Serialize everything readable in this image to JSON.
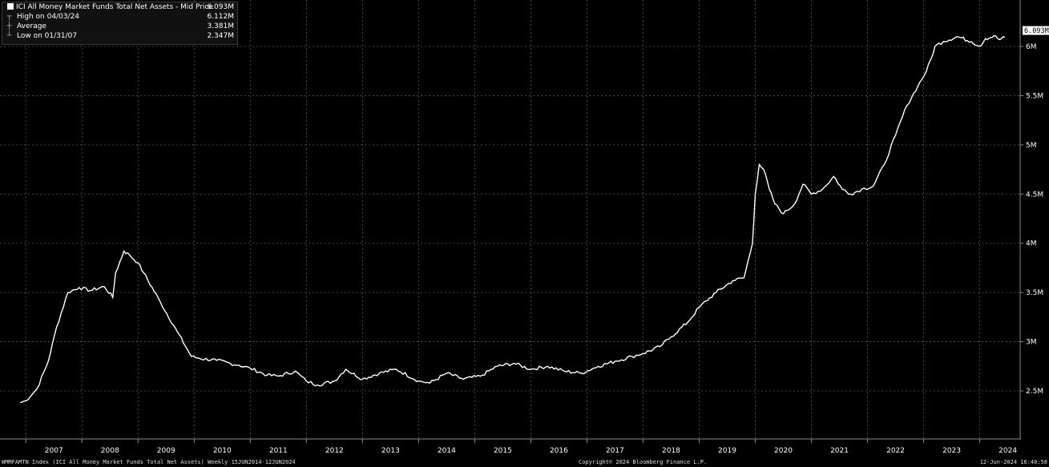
{
  "legend": {
    "title": "ICI All Money Market Funds Total Net Assets - Mid Price",
    "last_value": "6.093M",
    "high_label": "High on 04/03/24",
    "high_value": "6.112M",
    "average_label": "Average",
    "average_value": "3.381M",
    "low_label": "Low on 01/31/07",
    "low_value": "2.347M"
  },
  "footer": {
    "left": "WMMFAMTN Index (ICI All Money Market Funds Total Net Assets)  Weekly 15JUN2014-12JUN2024",
    "center": "Copyright© 2024 Bloomberg Finance L.P.",
    "right": "12-Jun-2024 16:40:58"
  },
  "colors": {
    "background": "#000000",
    "line": "#ffffff",
    "grid": "#5a5a5a"
  },
  "chart_data": {
    "type": "line",
    "grid": true,
    "ylim": [
      2.1,
      6.5
    ],
    "y_ticks": [
      {
        "value": 2.5,
        "label": "2.5M"
      },
      {
        "value": 3.0,
        "label": "3M"
      },
      {
        "value": 3.5,
        "label": "3.5M"
      },
      {
        "value": 4.0,
        "label": "4M"
      },
      {
        "value": 4.5,
        "label": "4.5M"
      },
      {
        "value": 5.0,
        "label": "5M"
      },
      {
        "value": 5.5,
        "label": "5.5M"
      },
      {
        "value": 6.0,
        "label": "6M"
      }
    ],
    "x_ticks": [
      "2007",
      "2008",
      "2009",
      "2010",
      "2011",
      "2012",
      "2013",
      "2014",
      "2015",
      "2016",
      "2017",
      "2018",
      "2019",
      "2020",
      "2021",
      "2022",
      "2023",
      "2024"
    ],
    "last_value_label": "6.093M",
    "series": [
      {
        "name": "ICI All Money Market Funds Total Net Assets",
        "x": [
          2006.9,
          2007.0,
          2007.2,
          2007.4,
          2007.55,
          2007.75,
          2007.95,
          2008.15,
          2008.4,
          2008.55,
          2008.6,
          2008.75,
          2008.85,
          2009.0,
          2009.1,
          2009.4,
          2009.7,
          2009.95,
          2010.1,
          2010.4,
          2010.8,
          2011.0,
          2011.3,
          2011.5,
          2011.8,
          2012.0,
          2012.2,
          2012.5,
          2012.7,
          2013.0,
          2013.3,
          2013.6,
          2014.0,
          2014.2,
          2014.5,
          2014.8,
          2015.1,
          2015.4,
          2015.7,
          2016.0,
          2016.3,
          2016.6,
          2016.9,
          2017.2,
          2017.5,
          2017.8,
          2018.0,
          2018.3,
          2018.5,
          2018.8,
          2019.0,
          2019.3,
          2019.6,
          2019.8,
          2019.95,
          2020.0,
          2020.07,
          2020.15,
          2020.25,
          2020.35,
          2020.5,
          2020.7,
          2020.85,
          2021.0,
          2021.2,
          2021.4,
          2021.55,
          2021.7,
          2021.9,
          2022.1,
          2022.3,
          2022.5,
          2022.7,
          2022.9,
          2023.05,
          2023.15,
          2023.2,
          2023.35,
          2023.6,
          2023.85,
          2024.0,
          2024.1,
          2024.2,
          2024.25,
          2024.35,
          2024.45
        ],
        "values": [
          2.38,
          2.4,
          2.52,
          2.8,
          3.15,
          3.5,
          3.55,
          3.52,
          3.56,
          3.45,
          3.7,
          3.92,
          3.88,
          3.8,
          3.7,
          3.4,
          3.1,
          2.85,
          2.83,
          2.81,
          2.76,
          2.73,
          2.66,
          2.65,
          2.7,
          2.6,
          2.56,
          2.6,
          2.72,
          2.62,
          2.68,
          2.72,
          2.6,
          2.58,
          2.68,
          2.62,
          2.65,
          2.75,
          2.78,
          2.72,
          2.75,
          2.7,
          2.68,
          2.75,
          2.8,
          2.85,
          2.88,
          2.95,
          3.05,
          3.2,
          3.35,
          3.5,
          3.62,
          3.65,
          4.0,
          4.5,
          4.8,
          4.75,
          4.55,
          4.4,
          4.3,
          4.4,
          4.6,
          4.5,
          4.55,
          4.68,
          4.55,
          4.5,
          4.55,
          4.58,
          4.8,
          5.1,
          5.4,
          5.6,
          5.75,
          5.9,
          6.0,
          6.05,
          6.1,
          6.05,
          6.0,
          6.08,
          6.09,
          6.11,
          6.07,
          6.093
        ]
      }
    ]
  }
}
